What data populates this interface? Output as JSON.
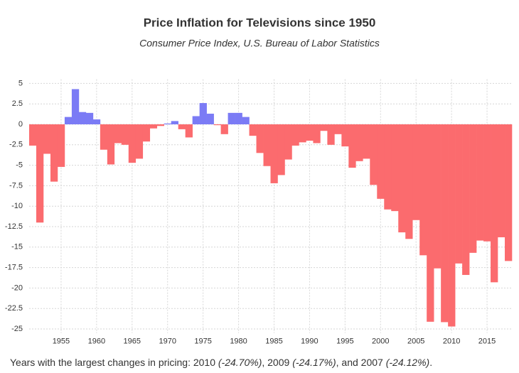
{
  "chart_data": {
    "type": "bar",
    "title": "Price Inflation for Televisions since 1950",
    "subtitle": "Consumer Price Index, U.S. Bureau of Labor Statistics",
    "x": [
      1951,
      1952,
      1953,
      1954,
      1955,
      1956,
      1957,
      1958,
      1959,
      1960,
      1961,
      1962,
      1963,
      1964,
      1965,
      1966,
      1967,
      1968,
      1969,
      1970,
      1971,
      1972,
      1973,
      1974,
      1975,
      1976,
      1977,
      1978,
      1979,
      1980,
      1981,
      1982,
      1983,
      1984,
      1985,
      1986,
      1987,
      1988,
      1989,
      1990,
      1991,
      1992,
      1993,
      1994,
      1995,
      1996,
      1997,
      1998,
      1999,
      2000,
      2001,
      2002,
      2003,
      2004,
      2005,
      2006,
      2007,
      2008,
      2009,
      2010,
      2011,
      2012,
      2013,
      2014,
      2015,
      2016,
      2017,
      2018
    ],
    "values": [
      -2.6,
      -12,
      -3.6,
      -7,
      -5.2,
      0.9,
      4.3,
      1.5,
      1.4,
      0.6,
      -3.1,
      -4.9,
      -2.3,
      -2.5,
      -4.7,
      -4.2,
      -2.1,
      -0.5,
      -0.2,
      0.1,
      0.4,
      -0.6,
      -1.6,
      1.0,
      2.6,
      1.3,
      -0.1,
      -1.2,
      1.4,
      1.4,
      0.9,
      -1.4,
      -3.5,
      -5.1,
      -7.2,
      -6.2,
      -4.3,
      -2.6,
      -2.2,
      -2.0,
      -2.3,
      -0.8,
      -2.5,
      -1.2,
      -2.7,
      -5.3,
      -4.5,
      -4.2,
      -7.4,
      -9.1,
      -10.4,
      -10.6,
      -13.2,
      -14,
      -11.7,
      -16,
      -24.12,
      -17.6,
      -24.17,
      -24.7,
      -17,
      -18.4,
      -15.7,
      -14.2,
      -14.3,
      -19.3,
      -13.8,
      -16.7
    ],
    "color_positive": "#7b7bf5",
    "color_negative": "#fb6b6e",
    "xlim": [
      1950.5,
      2018.5
    ],
    "xticks": [
      1955,
      1960,
      1965,
      1970,
      1975,
      1980,
      1985,
      1990,
      1995,
      2000,
      2005,
      2010,
      2015
    ],
    "ylim": [
      -25.5,
      5.5
    ],
    "yticks": [
      5,
      2.5,
      0,
      -2.5,
      -5,
      -7.5,
      -10,
      -12.5,
      -15,
      -17.5,
      -20,
      -22.5,
      -25
    ],
    "grid": true
  },
  "footnote": [
    {
      "text": "Years with the largest changes in pricing: 2010 ",
      "italic": false
    },
    {
      "text": "(-24.70%)",
      "italic": true
    },
    {
      "text": ", 2009 ",
      "italic": false
    },
    {
      "text": "(-24.17%)",
      "italic": true
    },
    {
      "text": ", and 2007 ",
      "italic": false
    },
    {
      "text": "(-24.12%)",
      "italic": true
    },
    {
      "text": ".",
      "italic": false
    }
  ]
}
